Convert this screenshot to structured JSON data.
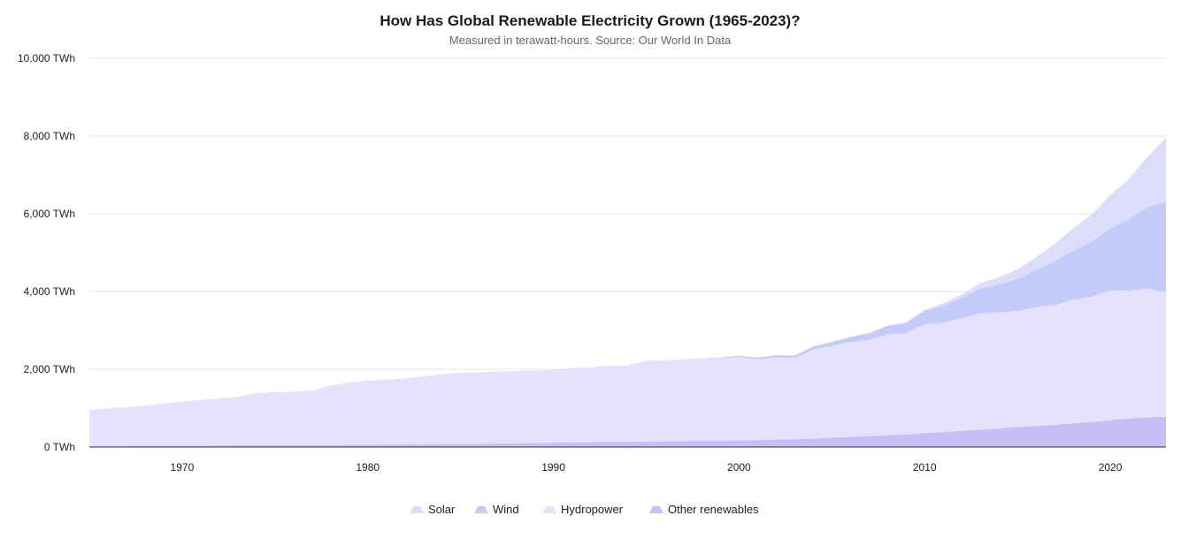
{
  "chart_data": {
    "type": "area",
    "stacked": true,
    "title": "How Has Global Renewable Electricity Grown (1965-2023)?",
    "subtitle": "Measured in terawatt-hours. Source: Our World In Data",
    "xlabel": "",
    "ylabel": "",
    "xlim": [
      1965,
      2023
    ],
    "ylim": [
      0,
      10000
    ],
    "y_ticks": [
      {
        "value": 0,
        "label": "0 TWh"
      },
      {
        "value": 2000,
        "label": "2,000 TWh"
      },
      {
        "value": 4000,
        "label": "4,000 TWh"
      },
      {
        "value": 6000,
        "label": "6,000 TWh"
      },
      {
        "value": 8000,
        "label": "8,000 TWh"
      },
      {
        "value": 10000,
        "label": "10,000 TWh"
      }
    ],
    "x_ticks": [
      {
        "value": 1970,
        "label": "1970"
      },
      {
        "value": 1980,
        "label": "1980"
      },
      {
        "value": 1990,
        "label": "1990"
      },
      {
        "value": 2000,
        "label": "2000"
      },
      {
        "value": 2010,
        "label": "2010"
      },
      {
        "value": 2020,
        "label": "2020"
      }
    ],
    "legend_position": "bottom-center",
    "x": [
      1965,
      1966,
      1967,
      1968,
      1969,
      1970,
      1971,
      1972,
      1973,
      1974,
      1975,
      1976,
      1977,
      1978,
      1979,
      1980,
      1981,
      1982,
      1983,
      1984,
      1985,
      1986,
      1987,
      1988,
      1989,
      1990,
      1991,
      1992,
      1993,
      1994,
      1995,
      1996,
      1997,
      1998,
      1999,
      2000,
      2001,
      2002,
      2003,
      2004,
      2005,
      2006,
      2007,
      2008,
      2009,
      2010,
      2011,
      2012,
      2013,
      2014,
      2015,
      2016,
      2017,
      2018,
      2019,
      2020,
      2021,
      2022,
      2023
    ],
    "series": [
      {
        "name": "Other renewables",
        "color": "#c8bdf5",
        "values": [
          30,
          31,
          32,
          34,
          36,
          38,
          40,
          42,
          44,
          46,
          48,
          50,
          52,
          54,
          56,
          60,
          64,
          68,
          72,
          76,
          80,
          86,
          92,
          98,
          104,
          110,
          116,
          122,
          128,
          134,
          140,
          146,
          152,
          158,
          164,
          170,
          180,
          190,
          200,
          220,
          240,
          260,
          280,
          300,
          320,
          360,
          380,
          420,
          450,
          480,
          520,
          540,
          570,
          610,
          650,
          690,
          740,
          760,
          780
        ]
      },
      {
        "name": "Hydropower",
        "color": "#e6e2fd",
        "values": [
          920,
          970,
          990,
          1030,
          1080,
          1130,
          1170,
          1210,
          1240,
          1350,
          1360,
          1380,
          1400,
          1530,
          1600,
          1650,
          1670,
          1700,
          1750,
          1800,
          1830,
          1840,
          1850,
          1860,
          1860,
          1880,
          1920,
          1920,
          1970,
          1960,
          2080,
          2080,
          2100,
          2110,
          2120,
          2150,
          2080,
          2120,
          2090,
          2290,
          2360,
          2440,
          2480,
          2600,
          2600,
          2800,
          2820,
          2890,
          2990,
          2980,
          2980,
          3060,
          3080,
          3180,
          3220,
          3340,
          3280,
          3310,
          3200
        ]
      },
      {
        "name": "Wind",
        "color": "#c3cbf8",
        "values": [
          0,
          0,
          0,
          0,
          0,
          0,
          0,
          0,
          0,
          0,
          0,
          0,
          0,
          0,
          0,
          0,
          0,
          0,
          0,
          0,
          0,
          0,
          0,
          0,
          0,
          0,
          0,
          0,
          0,
          0,
          1,
          1,
          2,
          10,
          20,
          30,
          40,
          50,
          60,
          80,
          100,
          130,
          165,
          220,
          270,
          340,
          430,
          520,
          640,
          720,
          820,
          950,
          1120,
          1260,
          1410,
          1590,
          1840,
          2100,
          2330
        ]
      },
      {
        "name": "Solar",
        "color": "#dcdcfb",
        "values": [
          0,
          0,
          0,
          0,
          0,
          0,
          0,
          0,
          0,
          0,
          0,
          0,
          0,
          0,
          0,
          0,
          0,
          0,
          0,
          0,
          0,
          0,
          0,
          0,
          0,
          0,
          0,
          0,
          0,
          0,
          0,
          0,
          0,
          0,
          0,
          1,
          1,
          1,
          2,
          3,
          4,
          6,
          8,
          12,
          20,
          32,
          64,
          100,
          135,
          190,
          250,
          330,
          450,
          580,
          700,
          860,
          1030,
          1290,
          1650
        ]
      }
    ],
    "legend": [
      {
        "name": "Solar",
        "color": "#dcdcfb"
      },
      {
        "name": "Wind",
        "color": "#c3cbf8"
      },
      {
        "name": "Hydropower",
        "color": "#e6e2fd"
      },
      {
        "name": "Other renewables",
        "color": "#c8bdf5"
      }
    ]
  }
}
